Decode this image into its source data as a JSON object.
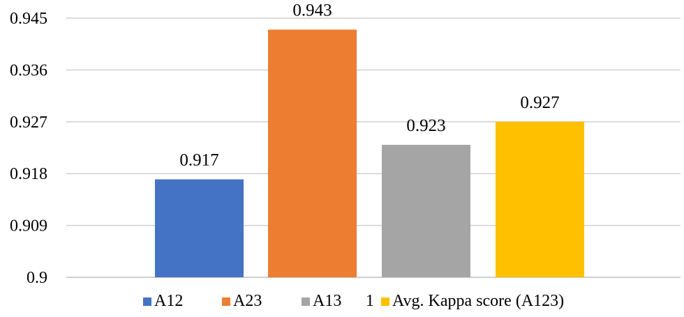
{
  "chart_data": {
    "type": "bar",
    "title": "",
    "xlabel": "",
    "ylabel": "",
    "ylim": [
      0.9,
      0.945
    ],
    "y_ticks": [
      "0.9",
      "0.909",
      "0.918",
      "0.927",
      "0.936",
      "0.945"
    ],
    "y_tick_values": [
      0.9,
      0.909,
      0.918,
      0.927,
      0.936,
      0.945
    ],
    "x_category_label": "1",
    "grid": true,
    "legend_position": "bottom",
    "series": [
      {
        "name": "A12",
        "value": 0.917,
        "label": "0.917",
        "color": "#4472c4"
      },
      {
        "name": "A23",
        "value": 0.943,
        "label": "0.943",
        "color": "#ed7d31"
      },
      {
        "name": "A13",
        "value": 0.923,
        "label": "0.923",
        "color": "#a5a5a5"
      },
      {
        "name": "Avg. Kappa score (A123)",
        "value": 0.927,
        "label": "0.927",
        "color": "#ffc000"
      }
    ]
  }
}
